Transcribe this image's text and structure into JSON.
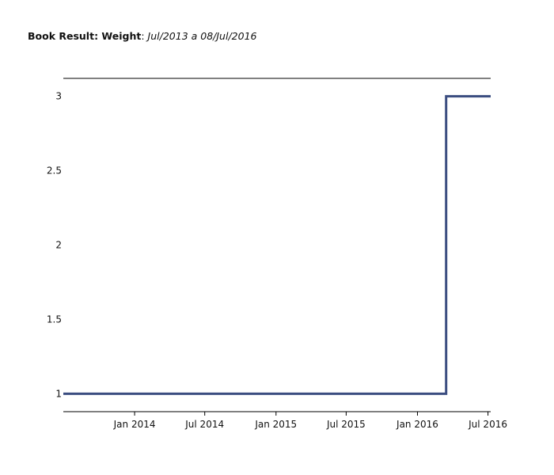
{
  "chart_data": {
    "type": "line",
    "step": true,
    "title_bold": "Book Result: Weight",
    "title_separator": ": ",
    "title_italic": "Jul/2013 a 08/Jul/2016",
    "xlabel": "",
    "ylabel": "",
    "x_range": [
      "2013-07-01",
      "2016-07-08"
    ],
    "ylim": [
      0.88,
      3.12
    ],
    "grid": false,
    "line_color": "#3b4d80",
    "x_ticks": [
      {
        "date": "2014-01-01",
        "label": "Jan 2014"
      },
      {
        "date": "2014-07-01",
        "label": "Jul 2014"
      },
      {
        "date": "2015-01-01",
        "label": "Jan 2015"
      },
      {
        "date": "2015-07-01",
        "label": "Jul 2015"
      },
      {
        "date": "2016-01-01",
        "label": "Jan 2016"
      },
      {
        "date": "2016-07-01",
        "label": "Jul 2016"
      }
    ],
    "y_ticks": [
      {
        "value": 1,
        "label": "1"
      },
      {
        "value": 1.5,
        "label": "1.5"
      },
      {
        "value": 2,
        "label": "2"
      },
      {
        "value": 2.5,
        "label": "2.5"
      },
      {
        "value": 3,
        "label": "3"
      }
    ],
    "points": [
      {
        "x": "2013-07-01",
        "y": 1
      },
      {
        "x": "2016-03-15",
        "y": 1
      },
      {
        "x": "2016-03-15",
        "y": 3
      },
      {
        "x": "2016-07-08",
        "y": 3
      }
    ]
  }
}
